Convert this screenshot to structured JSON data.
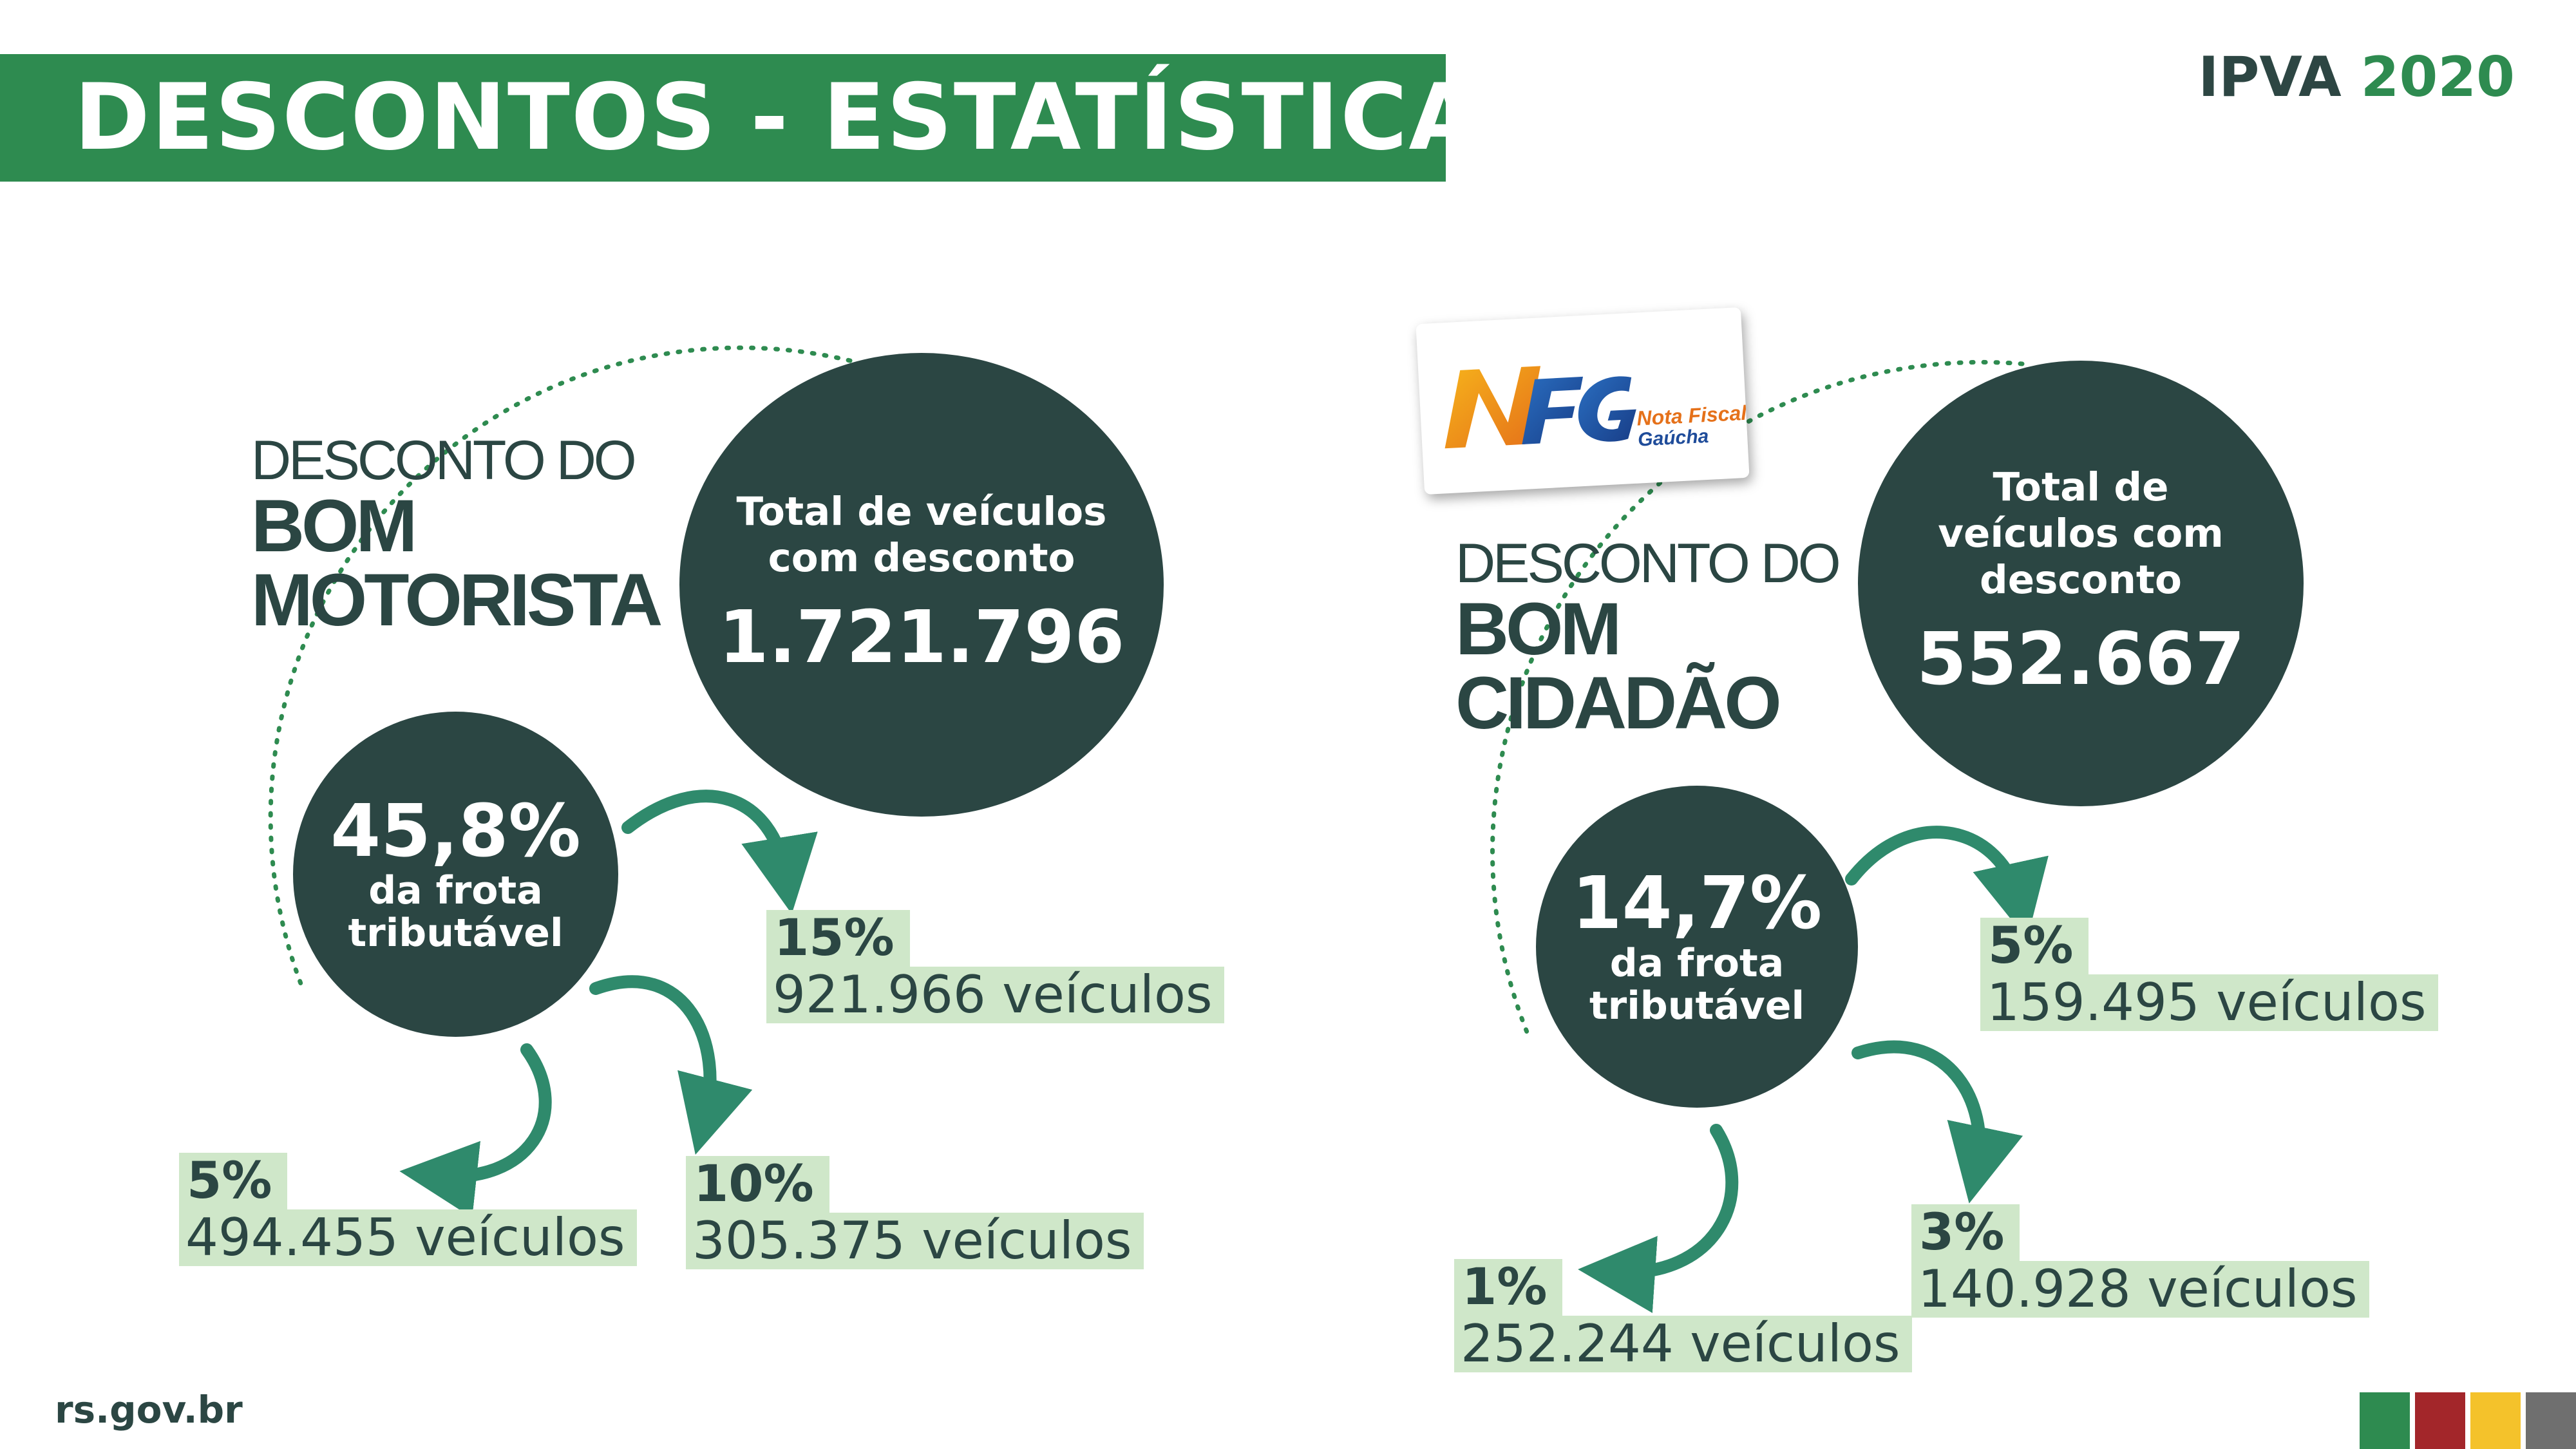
{
  "header": {
    "title": "DESCONTOS - ESTATÍSTICAS",
    "tag_prefix": "IPVA",
    "tag_year": "2020"
  },
  "colors": {
    "brand_green": "#2e8b50",
    "dark_teal": "#2b4643",
    "stat_background": "#cfe7c9",
    "flag": [
      "#2e8b50",
      "#a3262a",
      "#f4c22b",
      "#6f6f6f"
    ]
  },
  "bom_motorista": {
    "heading_line1": "DESCONTO DO",
    "heading_line2": "BOM",
    "heading_line3": "MOTORISTA",
    "total_label": "Total de veículos com desconto",
    "total_value": "1.721.796",
    "fleet_percent": "45,8%",
    "fleet_label": "da frota tributável",
    "tiers": [
      {
        "percent": "15%",
        "vehicles": "921.966 veículos"
      },
      {
        "percent": "10%",
        "vehicles": "305.375 veículos"
      },
      {
        "percent": "5%",
        "vehicles": "494.455 veículos"
      }
    ]
  },
  "bom_cidadao": {
    "heading_line1": "DESCONTO DO",
    "heading_line2": "BOM",
    "heading_line3": "CIDADÃO",
    "total_label": "Total de veículos com desconto",
    "total_value": "552.667",
    "fleet_percent": "14,7%",
    "fleet_label": "da frota tributável",
    "tiers": [
      {
        "percent": "5%",
        "vehicles": "159.495 veículos"
      },
      {
        "percent": "3%",
        "vehicles": "140.928 veículos"
      },
      {
        "percent": "1%",
        "vehicles": "252.244 veículos"
      }
    ]
  },
  "logo": {
    "icon": "nfg-logo",
    "text_line1": "Nota Fiscal",
    "text_line2": "Gaúcha"
  },
  "footer": {
    "site": "rs.gov.br",
    "flag_icon": "rs-flag-stripes"
  }
}
